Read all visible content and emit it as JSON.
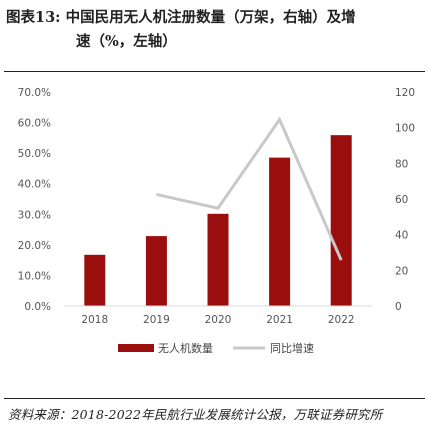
{
  "title": {
    "line1": "图表13:  中国民用无人机注册数量（万架，右轴）及增",
    "line2": "速（%，左轴）"
  },
  "source": "资料来源：2018-2022年民航行业发展统计公报，万联证券研究所",
  "colors": {
    "bar": "#9b0e0e",
    "line": "#c8c8c8",
    "axis_text": "#555555"
  },
  "chart_data": {
    "type": "bar",
    "categories": [
      "2018",
      "2019",
      "2020",
      "2021",
      "2022"
    ],
    "series": [
      {
        "name": "无人机数量",
        "type": "bar",
        "axis": "right",
        "values": [
          28.7,
          39.2,
          51.7,
          83.2,
          95.8
        ]
      },
      {
        "name": "同比增速",
        "type": "line",
        "axis": "left",
        "values": [
          null,
          36.5,
          32.0,
          61.0,
          15.0
        ]
      }
    ],
    "left_axis": {
      "ticks": [
        "0.0%",
        "10.0%",
        "20.0%",
        "30.0%",
        "40.0%",
        "50.0%",
        "60.0%",
        "70.0%"
      ],
      "lim": [
        0,
        70
      ]
    },
    "right_axis": {
      "ticks": [
        "0",
        "20",
        "40",
        "60",
        "80",
        "100",
        "120"
      ],
      "lim": [
        0,
        120
      ]
    },
    "grid": false,
    "legend_position": "bottom"
  }
}
